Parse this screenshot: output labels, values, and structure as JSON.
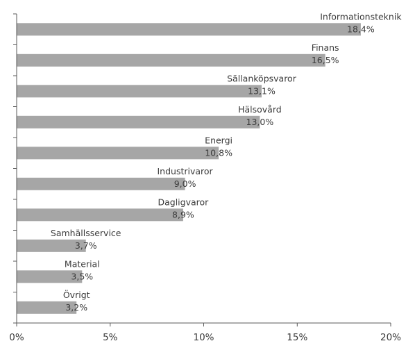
{
  "chart_data": {
    "type": "bar",
    "orientation": "horizontal",
    "categories": [
      "Informationsteknik",
      "Finans",
      "Sällanköpsvaror",
      "Hälsovård",
      "Energi",
      "Industrivaror",
      "Dagligvaror",
      "Samhällsservice",
      "Material",
      "Övrigt"
    ],
    "values": [
      18.4,
      16.5,
      13.1,
      13.0,
      10.8,
      9.0,
      8.9,
      3.7,
      3.5,
      3.2
    ],
    "value_labels": [
      "18,4%",
      "16,5%",
      "13,1%",
      "13,0%",
      "10,8%",
      "9,0%",
      "8,9%",
      "3,7%",
      "3,5%",
      "3,2%"
    ],
    "xlim": [
      0,
      20
    ],
    "x_ticks": [
      0,
      5,
      10,
      15,
      20
    ],
    "x_tick_labels": [
      "0%",
      "5%",
      "10%",
      "15%",
      "20%"
    ],
    "title": "",
    "xlabel": "",
    "ylabel": "",
    "grid": false,
    "legend": "none",
    "bar_color": "#a6a6a6",
    "axis_color": "#595959",
    "text_color": "#3a3a3a"
  }
}
